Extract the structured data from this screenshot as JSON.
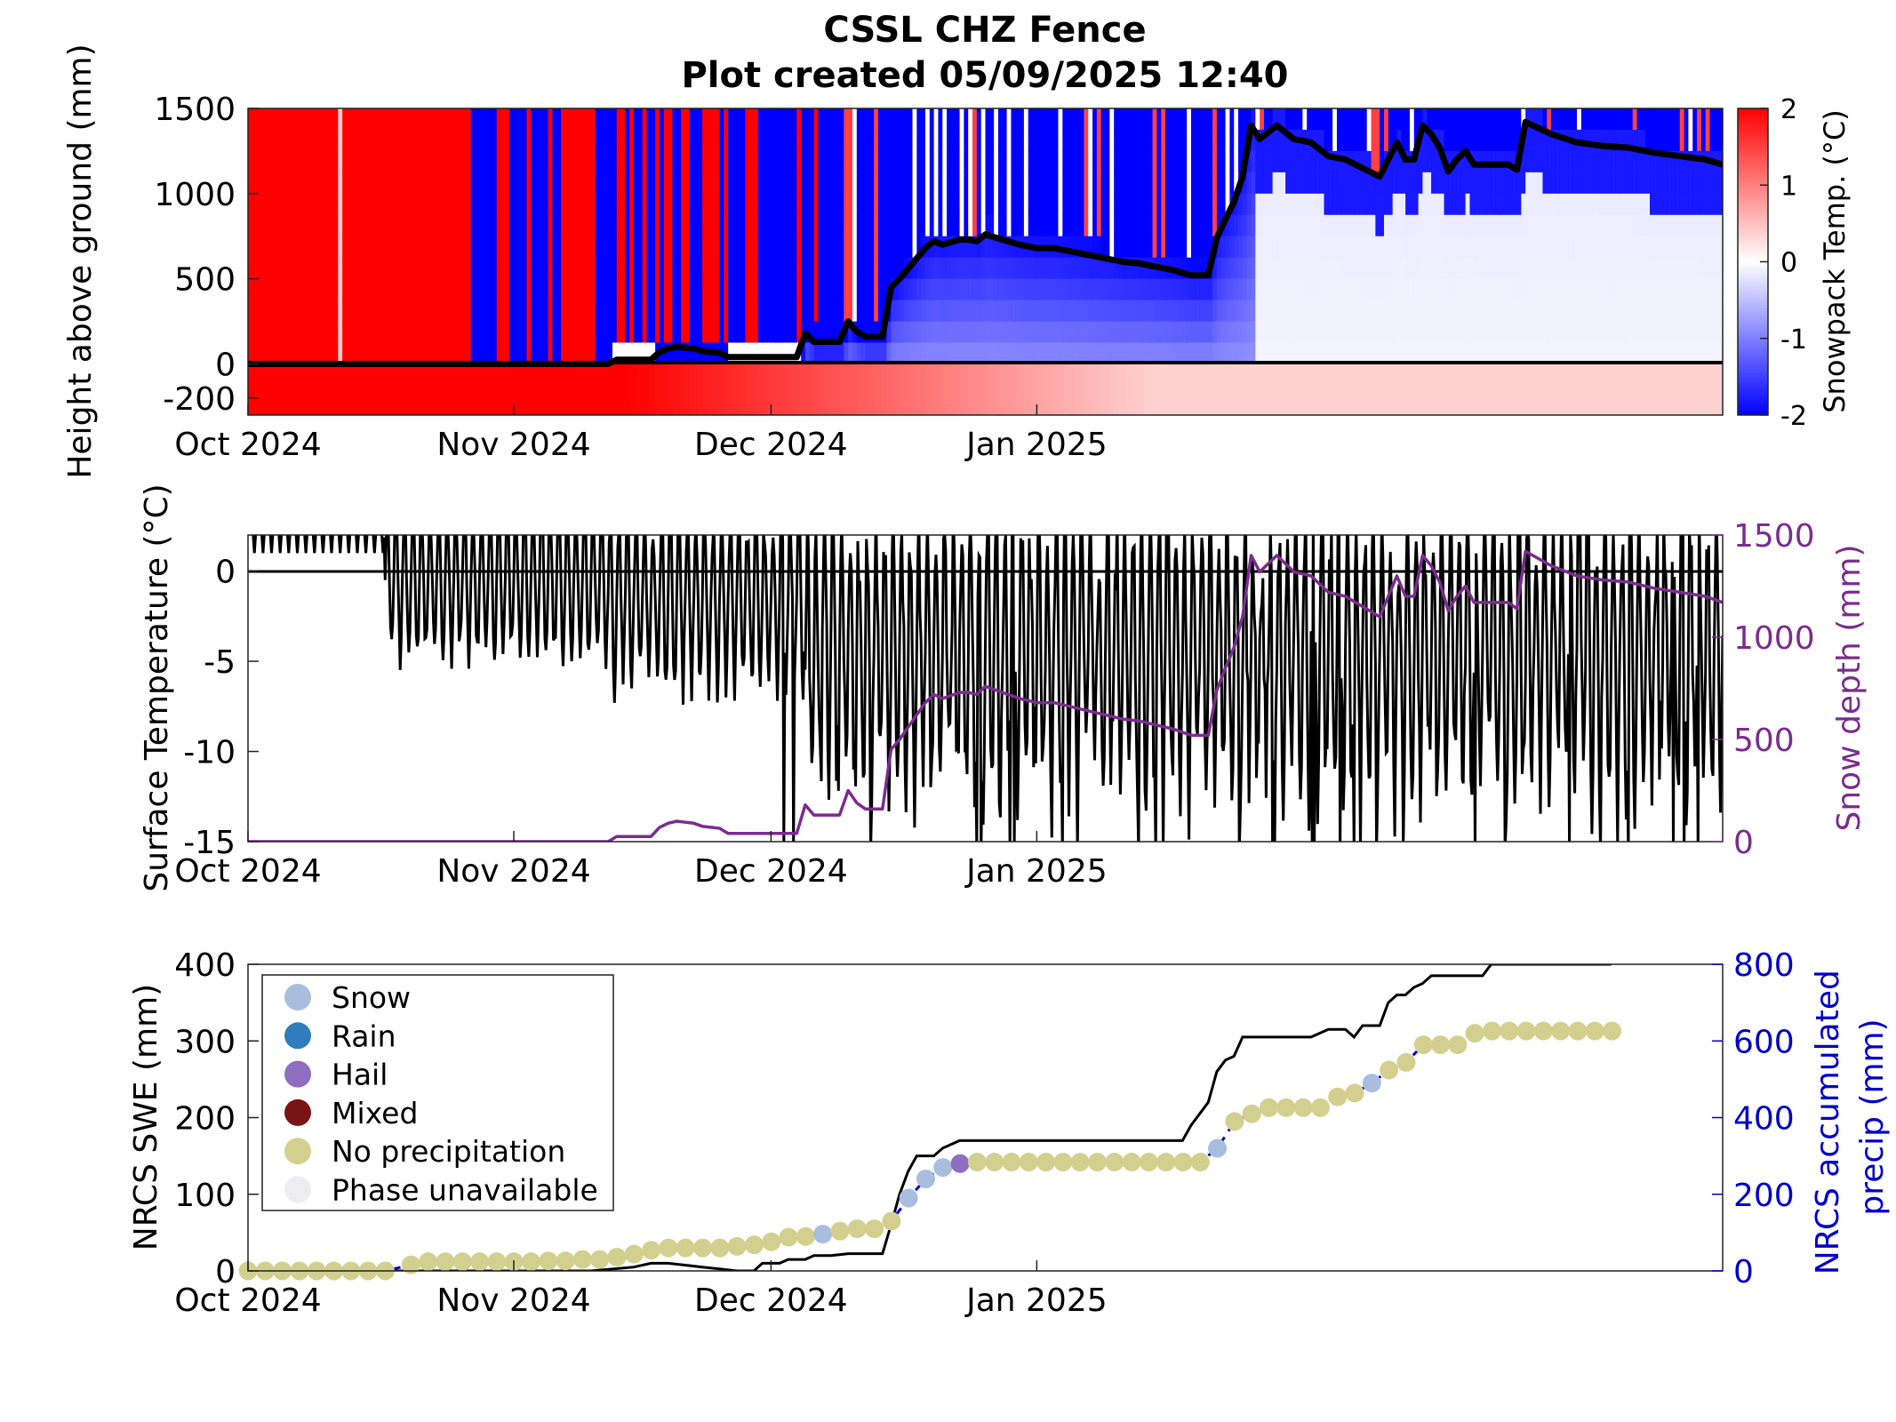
{
  "title": "CSSL CHZ Fence",
  "subtitle": "Plot created 05/09/2025 12:40",
  "colors": {
    "warm": "#ff0000",
    "cold": "#0000ff",
    "depth_line": "#000000",
    "snow_depth": "#7b2d8e",
    "swe_line": "#0000cc",
    "accum": "#000000",
    "snow": "#a9bddf",
    "rain": "#2f7dba",
    "hail": "#8f6dbf",
    "mixed": "#7a1414",
    "none": "#d3d08f",
    "unavailable": "#ededf0"
  },
  "chart_data": [
    {
      "type": "heatmap",
      "ylabel": "Height above ground (mm)",
      "colorbar_label": "Snowpack Temp. (°C)",
      "colorbar_ticks": [
        "2",
        "1",
        "0",
        "-1",
        "-2"
      ],
      "colorbar_range": [
        -2,
        2
      ],
      "x_ticks": [
        "Oct 2024",
        "Nov 2024",
        "Dec 2024",
        "Jan 2025"
      ],
      "y_ticks": [
        "1500",
        "1000",
        "500",
        "0",
        "-200"
      ],
      "ylim": [
        -300,
        1500
      ],
      "snow_depth_line": [
        [
          0,
          0
        ],
        [
          42,
          0
        ],
        [
          43,
          25
        ],
        [
          47,
          25
        ],
        [
          48,
          70
        ],
        [
          49,
          90
        ],
        [
          50,
          100
        ],
        [
          52,
          90
        ],
        [
          53,
          75
        ],
        [
          55,
          65
        ],
        [
          56,
          40
        ],
        [
          64,
          40
        ],
        [
          65,
          180
        ],
        [
          66,
          130
        ],
        [
          69,
          130
        ],
        [
          70,
          250
        ],
        [
          71,
          190
        ],
        [
          72,
          160
        ],
        [
          74,
          160
        ],
        [
          75,
          450
        ],
        [
          76,
          500
        ],
        [
          77,
          560
        ],
        [
          78,
          620
        ],
        [
          79,
          680
        ],
        [
          80,
          720
        ],
        [
          81,
          700
        ],
        [
          83,
          730
        ],
        [
          84,
          730
        ],
        [
          85,
          720
        ],
        [
          86,
          760
        ],
        [
          88,
          730
        ],
        [
          90,
          700
        ],
        [
          92,
          680
        ],
        [
          94,
          680
        ],
        [
          96,
          660
        ],
        [
          98,
          640
        ],
        [
          100,
          620
        ],
        [
          102,
          600
        ],
        [
          104,
          590
        ],
        [
          106,
          570
        ],
        [
          108,
          550
        ],
        [
          110,
          520
        ],
        [
          112,
          520
        ],
        [
          113,
          740
        ],
        [
          114,
          850
        ],
        [
          115,
          950
        ],
        [
          116,
          1100
        ],
        [
          117,
          1400
        ],
        [
          118,
          1320
        ],
        [
          120,
          1400
        ],
        [
          122,
          1320
        ],
        [
          124,
          1300
        ],
        [
          126,
          1220
        ],
        [
          128,
          1200
        ],
        [
          130,
          1150
        ],
        [
          132,
          1100
        ],
        [
          133,
          1200
        ],
        [
          134,
          1300
        ],
        [
          135,
          1200
        ],
        [
          136,
          1200
        ],
        [
          137,
          1400
        ],
        [
          138,
          1350
        ],
        [
          139,
          1270
        ],
        [
          140,
          1130
        ],
        [
          141,
          1200
        ],
        [
          142,
          1250
        ],
        [
          143,
          1170
        ],
        [
          147,
          1170
        ],
        [
          148,
          1140
        ],
        [
          149,
          1420
        ],
        [
          152,
          1350
        ],
        [
          155,
          1300
        ],
        [
          158,
          1280
        ],
        [
          161,
          1270
        ],
        [
          164,
          1240
        ],
        [
          167,
          1220
        ],
        [
          170,
          1200
        ],
        [
          172,
          1170
        ]
      ]
    },
    {
      "type": "line",
      "ylabel": "Surface Temperature (°C)",
      "y2label": "Snow depth (mm)",
      "x_ticks": [
        "Oct 2024",
        "Nov 2024",
        "Dec 2024",
        "Jan 2025"
      ],
      "y_ticks": [
        "0",
        "-5",
        "-10",
        "-15"
      ],
      "y2_ticks": [
        "1500",
        "1000",
        "500",
        "0"
      ],
      "ylim": [
        -15,
        2
      ],
      "y2lim": [
        0,
        1500
      ],
      "series": [
        {
          "name": "",
          "values": "hourly surface temperature, approx. +3 to -15 °C, diurnal cycle"
        },
        {
          "name": "",
          "values": "daily snow depth, 0 to 1420 mm"
        }
      ]
    },
    {
      "type": "scatter",
      "ylabel": "NRCS SWE (mm)",
      "y2label": "NRCS accumulated precip (mm)",
      "x_ticks": [
        "Oct 2024",
        "Nov 2024",
        "Dec 2024",
        "Jan 2025"
      ],
      "y_ticks": [
        "400",
        "300",
        "200",
        "100",
        "0"
      ],
      "y2_ticks": [
        "800",
        "600",
        "400",
        "200",
        "0"
      ],
      "ylim": [
        0,
        400
      ],
      "y2lim": [
        0,
        800
      ],
      "legend": {
        "placement": "top-left",
        "entries": [
          "Snow",
          "Rain",
          "Hail",
          "Mixed",
          "No precipitation",
          "Phase unavailable"
        ]
      },
      "swe_points": [
        [
          0,
          0,
          "none"
        ],
        [
          2,
          0,
          "none"
        ],
        [
          4,
          0,
          "none"
        ],
        [
          6,
          0,
          "none"
        ],
        [
          8,
          0,
          "none"
        ],
        [
          10,
          0,
          "none"
        ],
        [
          12,
          0,
          "none"
        ],
        [
          14,
          0,
          "none"
        ],
        [
          16,
          0,
          "none"
        ],
        [
          19,
          8,
          "none"
        ],
        [
          21,
          12,
          "none"
        ],
        [
          23,
          12,
          "none"
        ],
        [
          25,
          12,
          "none"
        ],
        [
          27,
          12,
          "none"
        ],
        [
          29,
          12,
          "none"
        ],
        [
          31,
          12,
          "none"
        ],
        [
          33,
          12,
          "none"
        ],
        [
          35,
          13,
          "none"
        ],
        [
          37,
          13,
          "none"
        ],
        [
          39,
          15,
          "none"
        ],
        [
          41,
          15,
          "none"
        ],
        [
          43,
          18,
          "none"
        ],
        [
          45,
          22,
          "none"
        ],
        [
          47,
          27,
          "none"
        ],
        [
          49,
          30,
          "none"
        ],
        [
          51,
          30,
          "none"
        ],
        [
          53,
          30,
          "none"
        ],
        [
          55,
          30,
          "none"
        ],
        [
          57,
          32,
          "none"
        ],
        [
          59,
          34,
          "none"
        ],
        [
          61,
          38,
          "none"
        ],
        [
          63,
          44,
          "none"
        ],
        [
          65,
          45,
          "none"
        ],
        [
          67,
          48,
          "snow"
        ],
        [
          69,
          52,
          "none"
        ],
        [
          71,
          55,
          "none"
        ],
        [
          73,
          55,
          "none"
        ],
        [
          75,
          65,
          "none"
        ],
        [
          77,
          95,
          "snow"
        ],
        [
          79,
          120,
          "snow"
        ],
        [
          81,
          135,
          "snow"
        ],
        [
          83,
          140,
          "hail"
        ],
        [
          85,
          142,
          "none"
        ],
        [
          87,
          142,
          "none"
        ],
        [
          89,
          142,
          "none"
        ],
        [
          91,
          142,
          "none"
        ],
        [
          93,
          142,
          "none"
        ],
        [
          95,
          142,
          "none"
        ],
        [
          97,
          142,
          "none"
        ],
        [
          99,
          142,
          "none"
        ],
        [
          101,
          142,
          "none"
        ],
        [
          103,
          142,
          "none"
        ],
        [
          105,
          142,
          "none"
        ],
        [
          107,
          142,
          "none"
        ],
        [
          109,
          142,
          "none"
        ],
        [
          111,
          142,
          "none"
        ],
        [
          113,
          160,
          "snow"
        ],
        [
          115,
          195,
          "none"
        ],
        [
          117,
          205,
          "none"
        ],
        [
          119,
          213,
          "none"
        ],
        [
          121,
          213,
          "none"
        ],
        [
          123,
          213,
          "none"
        ],
        [
          125,
          213,
          "none"
        ],
        [
          127,
          227,
          "none"
        ],
        [
          129,
          232,
          "none"
        ],
        [
          131,
          245,
          "snow"
        ],
        [
          133,
          262,
          "none"
        ],
        [
          135,
          272,
          "none"
        ],
        [
          137,
          295,
          "none"
        ],
        [
          139,
          295,
          "none"
        ],
        [
          141,
          295,
          "none"
        ],
        [
          143,
          310,
          "none"
        ],
        [
          145,
          313,
          "none"
        ],
        [
          147,
          313,
          "none"
        ],
        [
          149,
          313,
          "none"
        ],
        [
          151,
          313,
          "none"
        ],
        [
          153,
          313,
          "none"
        ],
        [
          155,
          313,
          "none"
        ],
        [
          157,
          313,
          "none"
        ],
        [
          159,
          313,
          "none"
        ]
      ],
      "accum_precip_line": [
        [
          0,
          0
        ],
        [
          20,
          0
        ],
        [
          40,
          0
        ],
        [
          45,
          10
        ],
        [
          47,
          20
        ],
        [
          49,
          20
        ],
        [
          51,
          15
        ],
        [
          53,
          10
        ],
        [
          55,
          5
        ],
        [
          57,
          0
        ],
        [
          59,
          0
        ],
        [
          60,
          20
        ],
        [
          62,
          20
        ],
        [
          63,
          30
        ],
        [
          65,
          30
        ],
        [
          66,
          40
        ],
        [
          68,
          40
        ],
        [
          70,
          45
        ],
        [
          72,
          45
        ],
        [
          74,
          45
        ],
        [
          75,
          120
        ],
        [
          76,
          200
        ],
        [
          77,
          260
        ],
        [
          78,
          300
        ],
        [
          80,
          300
        ],
        [
          81,
          320
        ],
        [
          83,
          340
        ],
        [
          89,
          340
        ],
        [
          95,
          340
        ],
        [
          101,
          340
        ],
        [
          107,
          340
        ],
        [
          109,
          340
        ],
        [
          110,
          380
        ],
        [
          112,
          440
        ],
        [
          113,
          520
        ],
        [
          114,
          550
        ],
        [
          115,
          560
        ],
        [
          116,
          610
        ],
        [
          120,
          610
        ],
        [
          124,
          610
        ],
        [
          126,
          630
        ],
        [
          128,
          630
        ],
        [
          129,
          610
        ],
        [
          130,
          640
        ],
        [
          132,
          640
        ],
        [
          133,
          700
        ],
        [
          134,
          720
        ],
        [
          135,
          720
        ],
        [
          136,
          740
        ],
        [
          137,
          750
        ],
        [
          138,
          770
        ],
        [
          142,
          770
        ],
        [
          144,
          770
        ],
        [
          145,
          800
        ],
        [
          159,
          800
        ]
      ]
    }
  ]
}
